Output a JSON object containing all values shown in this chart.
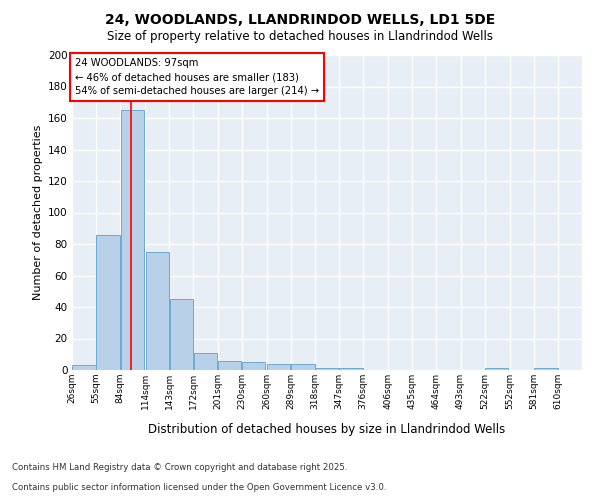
{
  "title1": "24, WOODLANDS, LLANDRINDOD WELLS, LD1 5DE",
  "title2": "Size of property relative to detached houses in Llandrindod Wells",
  "xlabel": "Distribution of detached houses by size in Llandrindod Wells",
  "ylabel": "Number of detached properties",
  "bin_edges": [
    26,
    55,
    84,
    114,
    143,
    172,
    201,
    230,
    260,
    289,
    318,
    347,
    376,
    406,
    435,
    464,
    493,
    522,
    552,
    581,
    610
  ],
  "counts": [
    3,
    86,
    165,
    75,
    45,
    11,
    6,
    5,
    4,
    4,
    1,
    1,
    0,
    0,
    0,
    0,
    0,
    1,
    0,
    1
  ],
  "bar_color": "#b8d0e8",
  "bar_edge_color": "#6aaad4",
  "red_line_x": 97,
  "annotation_line1": "24 WOODLANDS: 97sqm",
  "annotation_line2": "← 46% of detached houses are smaller (183)",
  "annotation_line3": "54% of semi-detached houses are larger (214) →",
  "fig_bg_color": "#ffffff",
  "plot_bg_color": "#e8eef5",
  "grid_color": "#ffffff",
  "footer1": "Contains HM Land Registry data © Crown copyright and database right 2025.",
  "footer2": "Contains public sector information licensed under the Open Government Licence v3.0.",
  "ylim": [
    0,
    200
  ],
  "yticks": [
    0,
    20,
    40,
    60,
    80,
    100,
    120,
    140,
    160,
    180,
    200
  ]
}
